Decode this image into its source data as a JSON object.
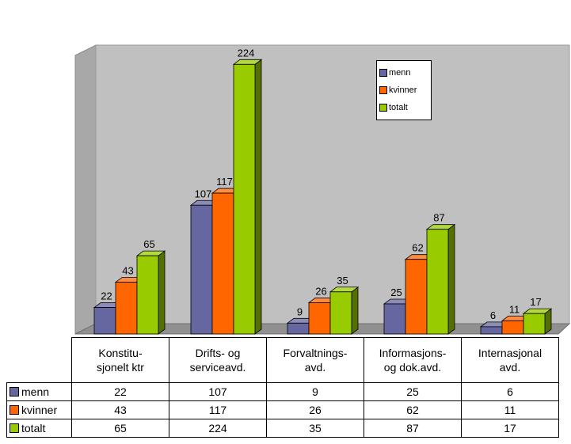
{
  "chart_data": {
    "type": "bar",
    "categories": [
      [
        "Konstitu-",
        "sjonelt ktr"
      ],
      [
        "Drifts- og",
        "serviceavd."
      ],
      [
        "Forvaltnings-",
        "avd."
      ],
      [
        "Informasjons-",
        "og dok.avd."
      ],
      [
        "Internasjonal",
        "avd."
      ]
    ],
    "series": [
      {
        "name": "menn",
        "values": [
          22,
          107,
          9,
          25,
          6
        ],
        "color": "#6666a0"
      },
      {
        "name": "kvinner",
        "values": [
          43,
          117,
          26,
          62,
          11
        ],
        "color": "#ff6600"
      },
      {
        "name": "totalt",
        "values": [
          65,
          224,
          35,
          87,
          17
        ],
        "color": "#99cc00"
      }
    ],
    "ylim": [
      0,
      240
    ],
    "grid": false,
    "legend_position": "top-right",
    "data_table": true
  }
}
